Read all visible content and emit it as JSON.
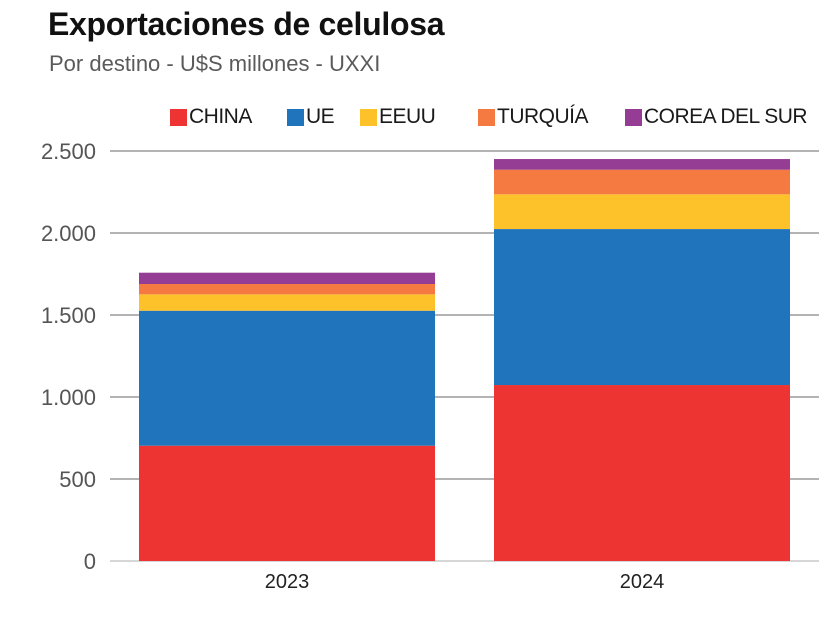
{
  "header": {
    "title": "Exportaciones de celulosa",
    "subtitle": "Por destino - U$S millones - UXXI"
  },
  "chart_data": {
    "type": "bar",
    "stacked": true,
    "title": "Exportaciones de celulosa",
    "subtitle": "Por destino - U$S millones - UXXI",
    "xlabel": "",
    "ylabel": "",
    "categories": [
      "2023",
      "2024"
    ],
    "series": [
      {
        "name": "CHINA",
        "color": "#EE3432",
        "values": [
          703,
          1073
        ]
      },
      {
        "name": "UE",
        "color": "#1F74BC",
        "values": [
          823,
          951
        ]
      },
      {
        "name": "EEUU",
        "color": "#FDC12A",
        "values": [
          100,
          212
        ]
      },
      {
        "name": "TURQUÍA",
        "color": "#F47A42",
        "values": [
          63,
          150
        ]
      },
      {
        "name": "COREA DEL SUR",
        "color": "#953C95",
        "values": [
          69,
          65
        ]
      }
    ],
    "ylim": [
      0,
      2500
    ],
    "yticks": [
      0,
      500,
      1000,
      1500,
      2000,
      2500
    ],
    "ytick_labels": [
      "0",
      "500",
      "1.000",
      "1.500",
      "2.000",
      "2.500"
    ],
    "grid": true,
    "legend_position": "top"
  }
}
